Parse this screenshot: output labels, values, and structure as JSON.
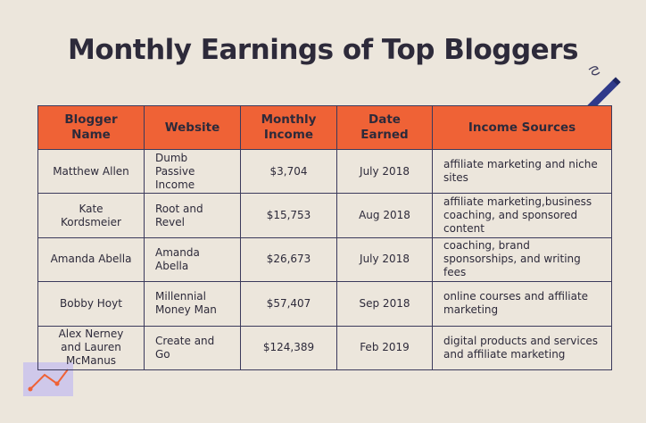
{
  "title": "Monthly Earnings of Top Bloggers",
  "table": {
    "header": [
      "Blogger Name",
      "Website",
      "Monthly Income",
      "Date Earned",
      "Income Sources"
    ],
    "rows": [
      [
        "Matthew Allen",
        "Dumb Passive Income",
        "$3,704",
        "July 2018",
        "affiliate marketing and niche sites"
      ],
      [
        "Kate Kordsmeier",
        "Root and Revel",
        "$15,753",
        "Aug 2018",
        "affiliate marketing,business coaching, and sponsored content"
      ],
      [
        "Amanda Abella",
        "Amanda Abella",
        "$26,673",
        "July 2018",
        "coaching, brand sponsorships, and writing fees"
      ],
      [
        "Bobby Hoyt",
        "Millennial Money Man",
        "$57,407",
        "Sep 2018",
        "online courses and affiliate marketing"
      ],
      [
        "Alex Nerney and Lauren McManus",
        "Create and Go",
        "$124,389",
        "Feb 2019",
        "digital products and services and affiliate marketing"
      ]
    ]
  }
}
